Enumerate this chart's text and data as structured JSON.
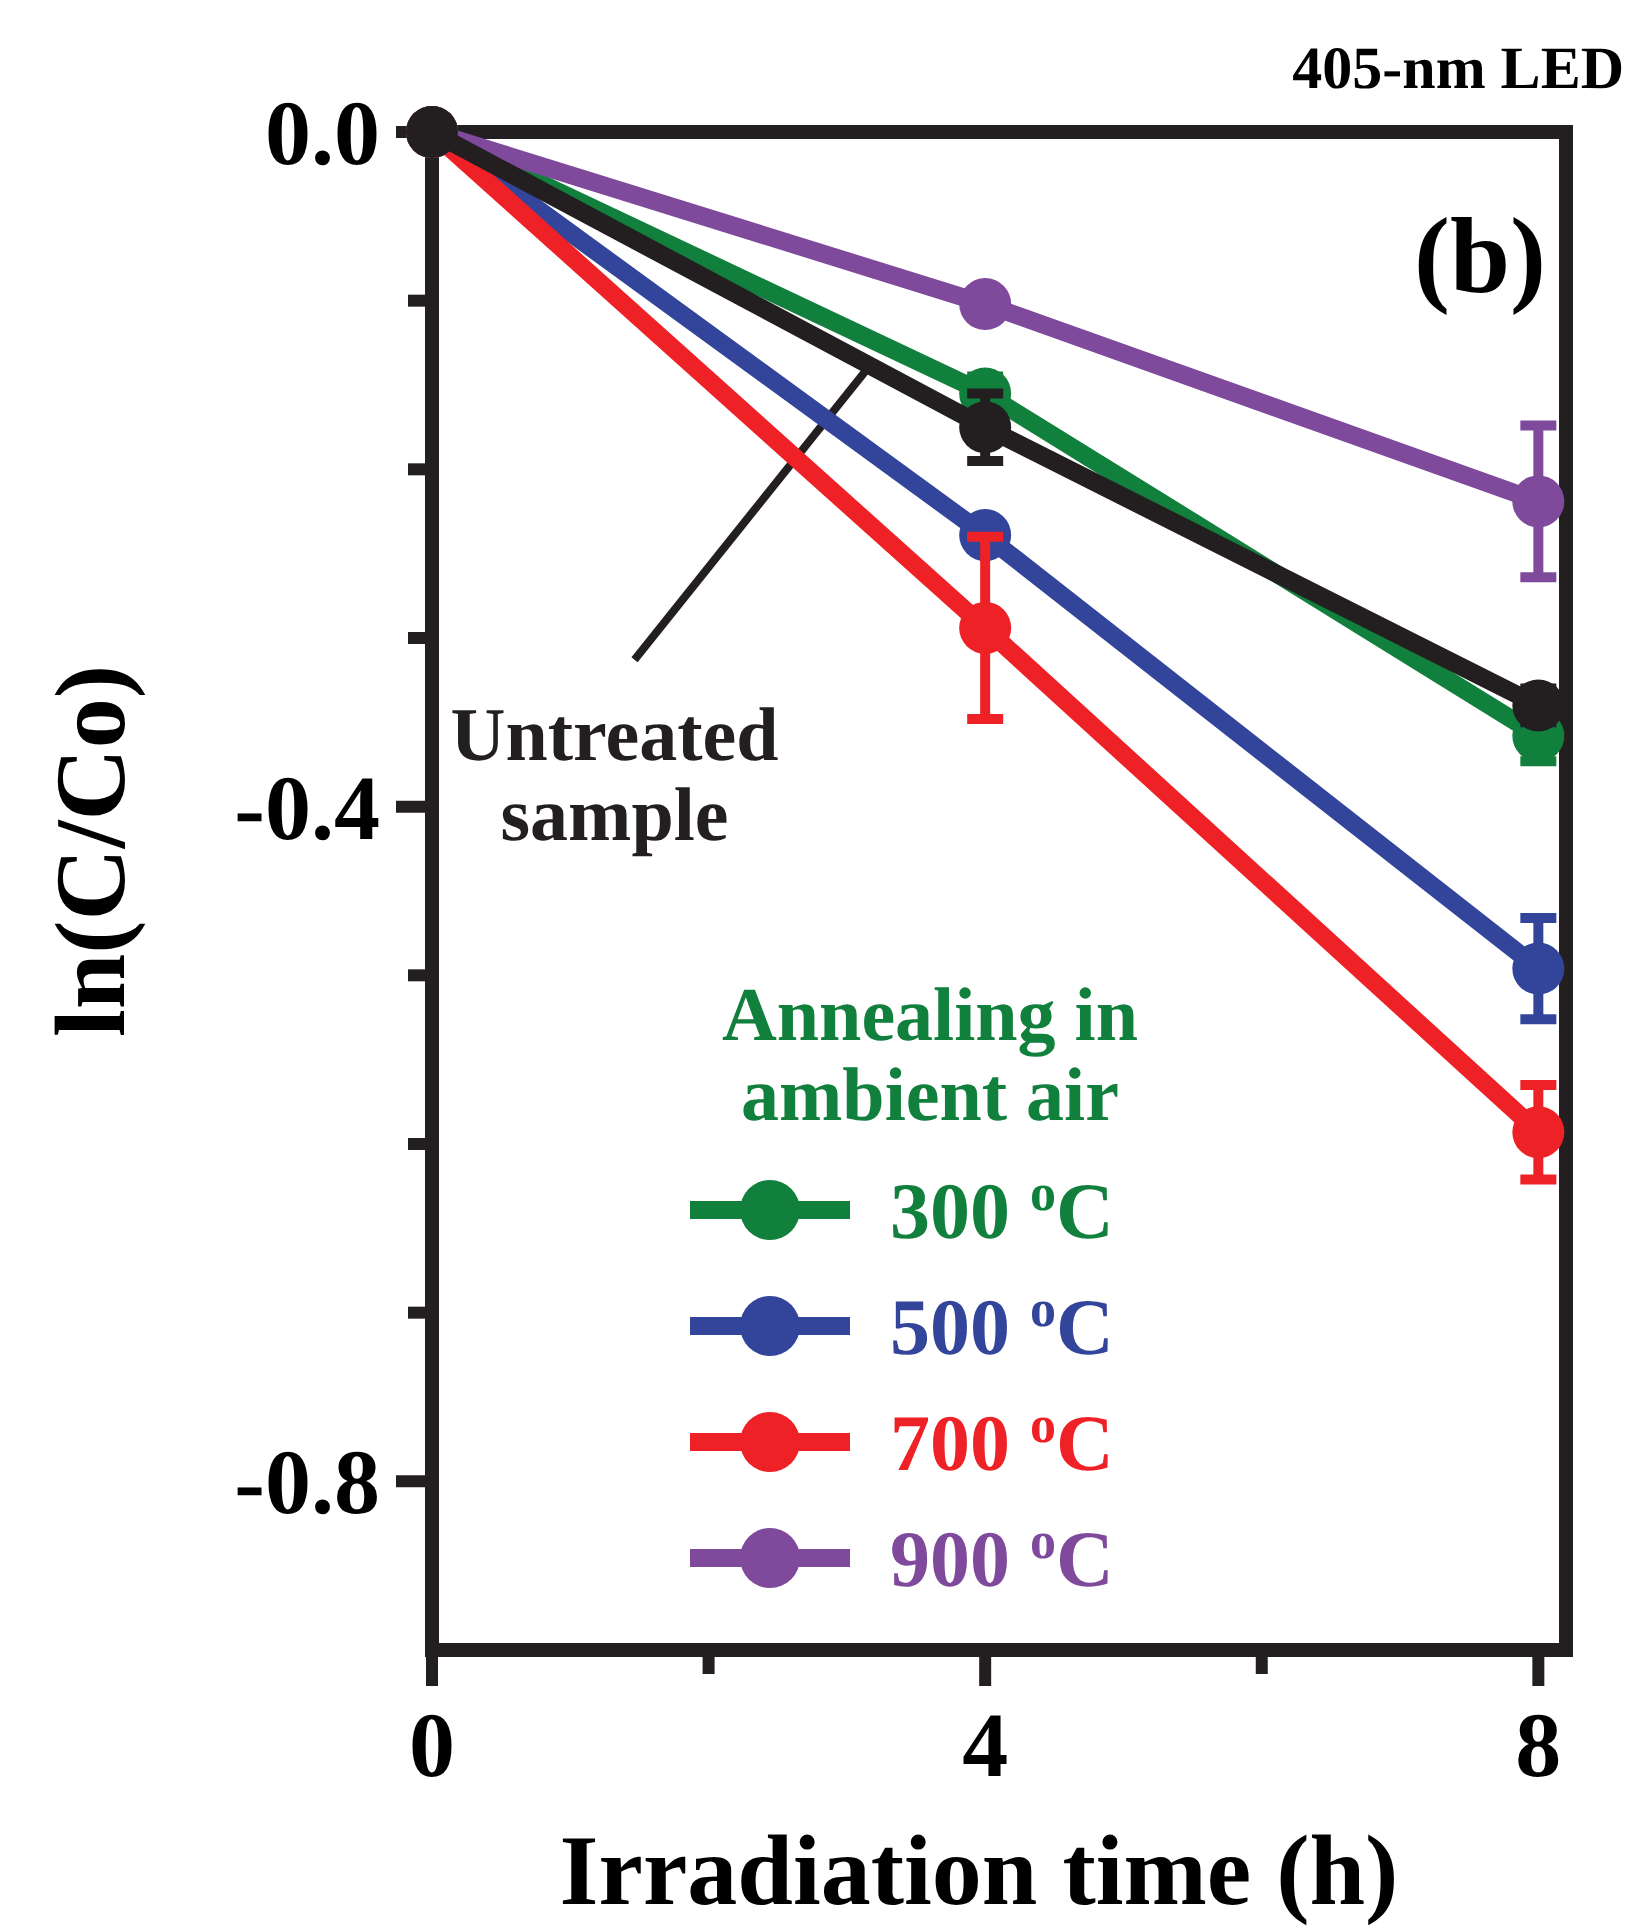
{
  "chart_data": {
    "type": "line",
    "title": "405-nm LED",
    "xlabel": "Irradiation time (h)",
    "ylabel": "ln(C/Co)",
    "legend_title": "Annealing in ambient air",
    "x": [
      0,
      4,
      8
    ],
    "xlim": [
      0,
      8.2
    ],
    "xticks": [
      0,
      {
        "value": 2,
        "label": null
      },
      4,
      {
        "value": 6,
        "label": null
      },
      8
    ],
    "ylim": [
      -0.9,
      0
    ],
    "yticks": [
      "0.0",
      {
        "value": -0.1,
        "label": null
      },
      {
        "value": -0.2,
        "label": null
      },
      {
        "value": -0.3,
        "label": null
      },
      {
        "value": -0.4,
        "label": "-0.4"
      },
      {
        "value": -0.5,
        "label": null
      },
      {
        "value": -0.6,
        "label": null
      },
      {
        "value": -0.7,
        "label": null
      },
      {
        "value": -0.8,
        "label": "-0.8"
      }
    ],
    "marker": "circle",
    "legend": "bottom",
    "annotations": [
      "(b)",
      {
        "text": "Untreated sample",
        "x": 3.2,
        "y": -0.135
      }
    ],
    "series": [
      {
        "name": "300 $^{o}$C",
        "color": "#10803c",
        "values": [
          0,
          -0.155,
          -0.358
        ],
        "errors": [
          null,
          0.01,
          0.015
        ]
      },
      {
        "name": "500 $^{o}$C",
        "color": "#32459b",
        "values": [
          0,
          -0.239,
          -0.496
        ],
        "errors": [
          null,
          null,
          0.03
        ]
      },
      {
        "name": "700 $^{o}$C",
        "color": "#ee2226",
        "values": [
          0,
          -0.294,
          -0.593
        ],
        "errors": [
          null,
          0.054,
          0.028
        ]
      },
      {
        "name": "900 $^{o}$C",
        "color": "#804a9c",
        "values": [
          0,
          -0.102,
          -0.219
        ],
        "errors": [
          null,
          null,
          0.045
        ]
      },
      {
        "color": "#231f20",
        "values": [
          0,
          -0.175,
          -0.34
        ],
        "errors": [
          null,
          0.02,
          0.01
        ]
      }
    ]
  }
}
